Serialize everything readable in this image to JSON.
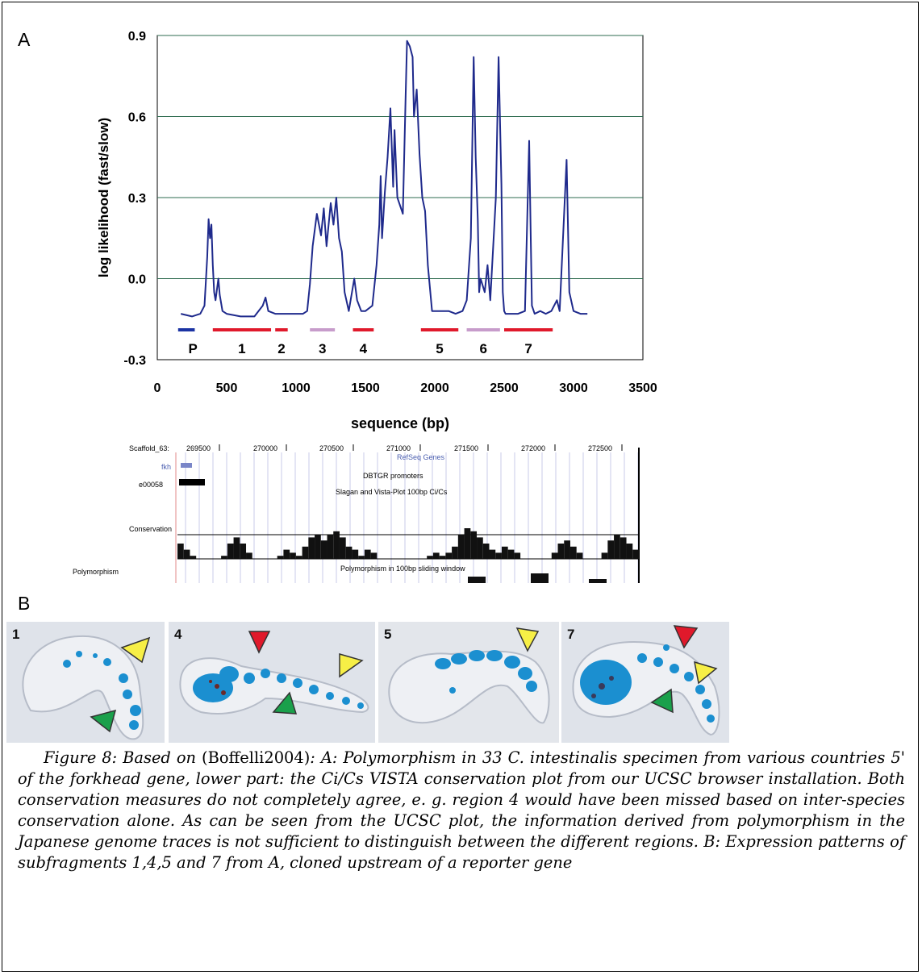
{
  "panel_a_label": "A",
  "panel_b_label": "B",
  "colors": {
    "line": "#1f2a8c",
    "grid": "#2e6b4f",
    "red_segment": "#e0192b",
    "lilac_segment": "#c79ccb",
    "blue_segment": "#1b33a3",
    "embryo_blue": "#1b8fd0"
  },
  "chart_data": {
    "type": "line",
    "title": "",
    "xlabel": "sequence (bp)",
    "ylabel": "log likelihood (fast/slow)",
    "xlim": [
      0,
      3500
    ],
    "ylim": [
      -0.3,
      0.9
    ],
    "xticks": [
      "0",
      "500",
      "1000",
      "1500",
      "2000",
      "2500",
      "3000",
      "3500"
    ],
    "yticks": [
      "-0.3",
      "0.0",
      "0.3",
      "0.6",
      "0.9"
    ],
    "grid": "horizontal",
    "x": [
      170,
      250,
      310,
      340,
      360,
      370,
      380,
      390,
      400,
      410,
      420,
      440,
      450,
      470,
      500,
      600,
      700,
      760,
      780,
      800,
      850,
      900,
      1000,
      1050,
      1080,
      1100,
      1120,
      1150,
      1180,
      1200,
      1220,
      1250,
      1270,
      1290,
      1310,
      1330,
      1350,
      1380,
      1410,
      1420,
      1440,
      1470,
      1500,
      1550,
      1580,
      1600,
      1610,
      1620,
      1640,
      1660,
      1680,
      1700,
      1710,
      1730,
      1750,
      1770,
      1790,
      1800,
      1820,
      1840,
      1850,
      1870,
      1890,
      1910,
      1930,
      1950,
      1980,
      2050,
      2100,
      2150,
      2200,
      2230,
      2260,
      2280,
      2295,
      2310,
      2320,
      2330,
      2360,
      2380,
      2400,
      2440,
      2460,
      2480,
      2490,
      2500,
      2510,
      2530,
      2560,
      2600,
      2650,
      2680,
      2690,
      2700,
      2720,
      2760,
      2800,
      2840,
      2880,
      2900,
      2920,
      2950,
      2970,
      3000,
      3050,
      3100
    ],
    "series": [
      {
        "values": [
          -0.13,
          -0.14,
          -0.13,
          -0.1,
          0.08,
          0.22,
          0.15,
          0.2,
          0.05,
          -0.05,
          -0.08,
          0.0,
          -0.06,
          -0.12,
          -0.13,
          -0.14,
          -0.14,
          -0.1,
          -0.07,
          -0.12,
          -0.13,
          -0.13,
          -0.13,
          -0.13,
          -0.12,
          -0.02,
          0.12,
          0.24,
          0.16,
          0.26,
          0.12,
          0.28,
          0.2,
          0.3,
          0.15,
          0.1,
          -0.05,
          -0.12,
          -0.03,
          0.0,
          -0.08,
          -0.12,
          -0.12,
          -0.1,
          0.05,
          0.2,
          0.38,
          0.15,
          0.32,
          0.45,
          0.63,
          0.34,
          0.55,
          0.3,
          0.27,
          0.24,
          0.68,
          0.88,
          0.86,
          0.82,
          0.6,
          0.7,
          0.46,
          0.3,
          0.25,
          0.05,
          -0.12,
          -0.12,
          -0.12,
          -0.13,
          -0.12,
          -0.08,
          0.15,
          0.82,
          0.45,
          0.22,
          -0.05,
          0.0,
          -0.05,
          0.05,
          -0.08,
          0.3,
          0.82,
          0.35,
          -0.05,
          -0.12,
          -0.13,
          -0.13,
          -0.13,
          -0.13,
          -0.12,
          0.51,
          0.2,
          -0.1,
          -0.13,
          -0.12,
          -0.13,
          -0.12,
          -0.08,
          -0.12,
          0.1,
          0.44,
          -0.05,
          -0.12,
          -0.13,
          -0.13
        ]
      }
    ],
    "segments": [
      {
        "label": "P",
        "x": [
          150,
          270
        ],
        "color": "blue"
      },
      {
        "label": "1",
        "x": [
          400,
          820
        ],
        "color": "red"
      },
      {
        "label": "2",
        "x": [
          850,
          940
        ],
        "color": "red"
      },
      {
        "label": "3",
        "x": [
          1100,
          1280
        ],
        "color": "lilac"
      },
      {
        "label": "4",
        "x": [
          1410,
          1560
        ],
        "color": "red"
      },
      {
        "label": "5",
        "x": [
          1900,
          2170
        ],
        "color": "red"
      },
      {
        "label": "6",
        "x": [
          2230,
          2470
        ],
        "color": "lilac"
      },
      {
        "label": "7",
        "x": [
          2500,
          2850
        ],
        "color": "red"
      }
    ]
  },
  "browser": {
    "scaffold": "Scaffold_63:",
    "positions": [
      "269500",
      "270000",
      "270500",
      "271000",
      "271500",
      "272000",
      "272500"
    ],
    "gene": "fkh",
    "refseq_track": "RefSeq Genes",
    "promoter_id": "e00058",
    "dbtgr_track": "DBTGR promoters",
    "slagan_track": "Slagan and Vista-Plot 100bp Ci/Cs",
    "conservation_label": "Conservation",
    "polymorphism_label": "Polymorphism",
    "polymorphism_track": "Polymorphism in 100bp sliding window",
    "conservation_values": [
      0.5,
      0.3,
      0.1,
      0,
      0,
      0,
      0,
      0.1,
      0.5,
      0.7,
      0.5,
      0.2,
      0,
      0,
      0,
      0,
      0.1,
      0.3,
      0.2,
      0.1,
      0.4,
      0.7,
      0.8,
      0.6,
      0.8,
      0.9,
      0.7,
      0.4,
      0.3,
      0.1,
      0.3,
      0.2,
      0,
      0,
      0,
      0,
      0,
      0,
      0,
      0,
      0.1,
      0.2,
      0.1,
      0.2,
      0.4,
      0.8,
      1,
      0.9,
      0.7,
      0.5,
      0.3,
      0.2,
      0.4,
      0.3,
      0.2,
      0,
      0,
      0,
      0,
      0,
      0.2,
      0.5,
      0.6,
      0.4,
      0.2,
      0,
      0,
      0,
      0.2,
      0.6,
      0.8,
      0.7,
      0.5,
      0.3
    ]
  },
  "photos": [
    {
      "label": "1"
    },
    {
      "label": "4"
    },
    {
      "label": "5"
    },
    {
      "label": "7"
    }
  ],
  "caption": {
    "figure": "Figure 8: Based on ",
    "ref": "(Boffelli2004)",
    "text": ": A: Polymorphism in 33 C. intestinalis specimen from various countries 5' of the forkhead gene, lower part: the Ci/Cs VISTA conservation plot from our UCSC browser installation. Both conservation measures do not completely agree, e. g. region 4 would have been missed based on inter-species conservation alone. As can be seen from the UCSC plot, the information derived from polymorphism in the Japanese genome traces is not sufficient to distinguish between the different regions. B: Expression patterns of subfragments 1,4,5 and 7 from A, cloned upstream of a reporter gene"
  }
}
